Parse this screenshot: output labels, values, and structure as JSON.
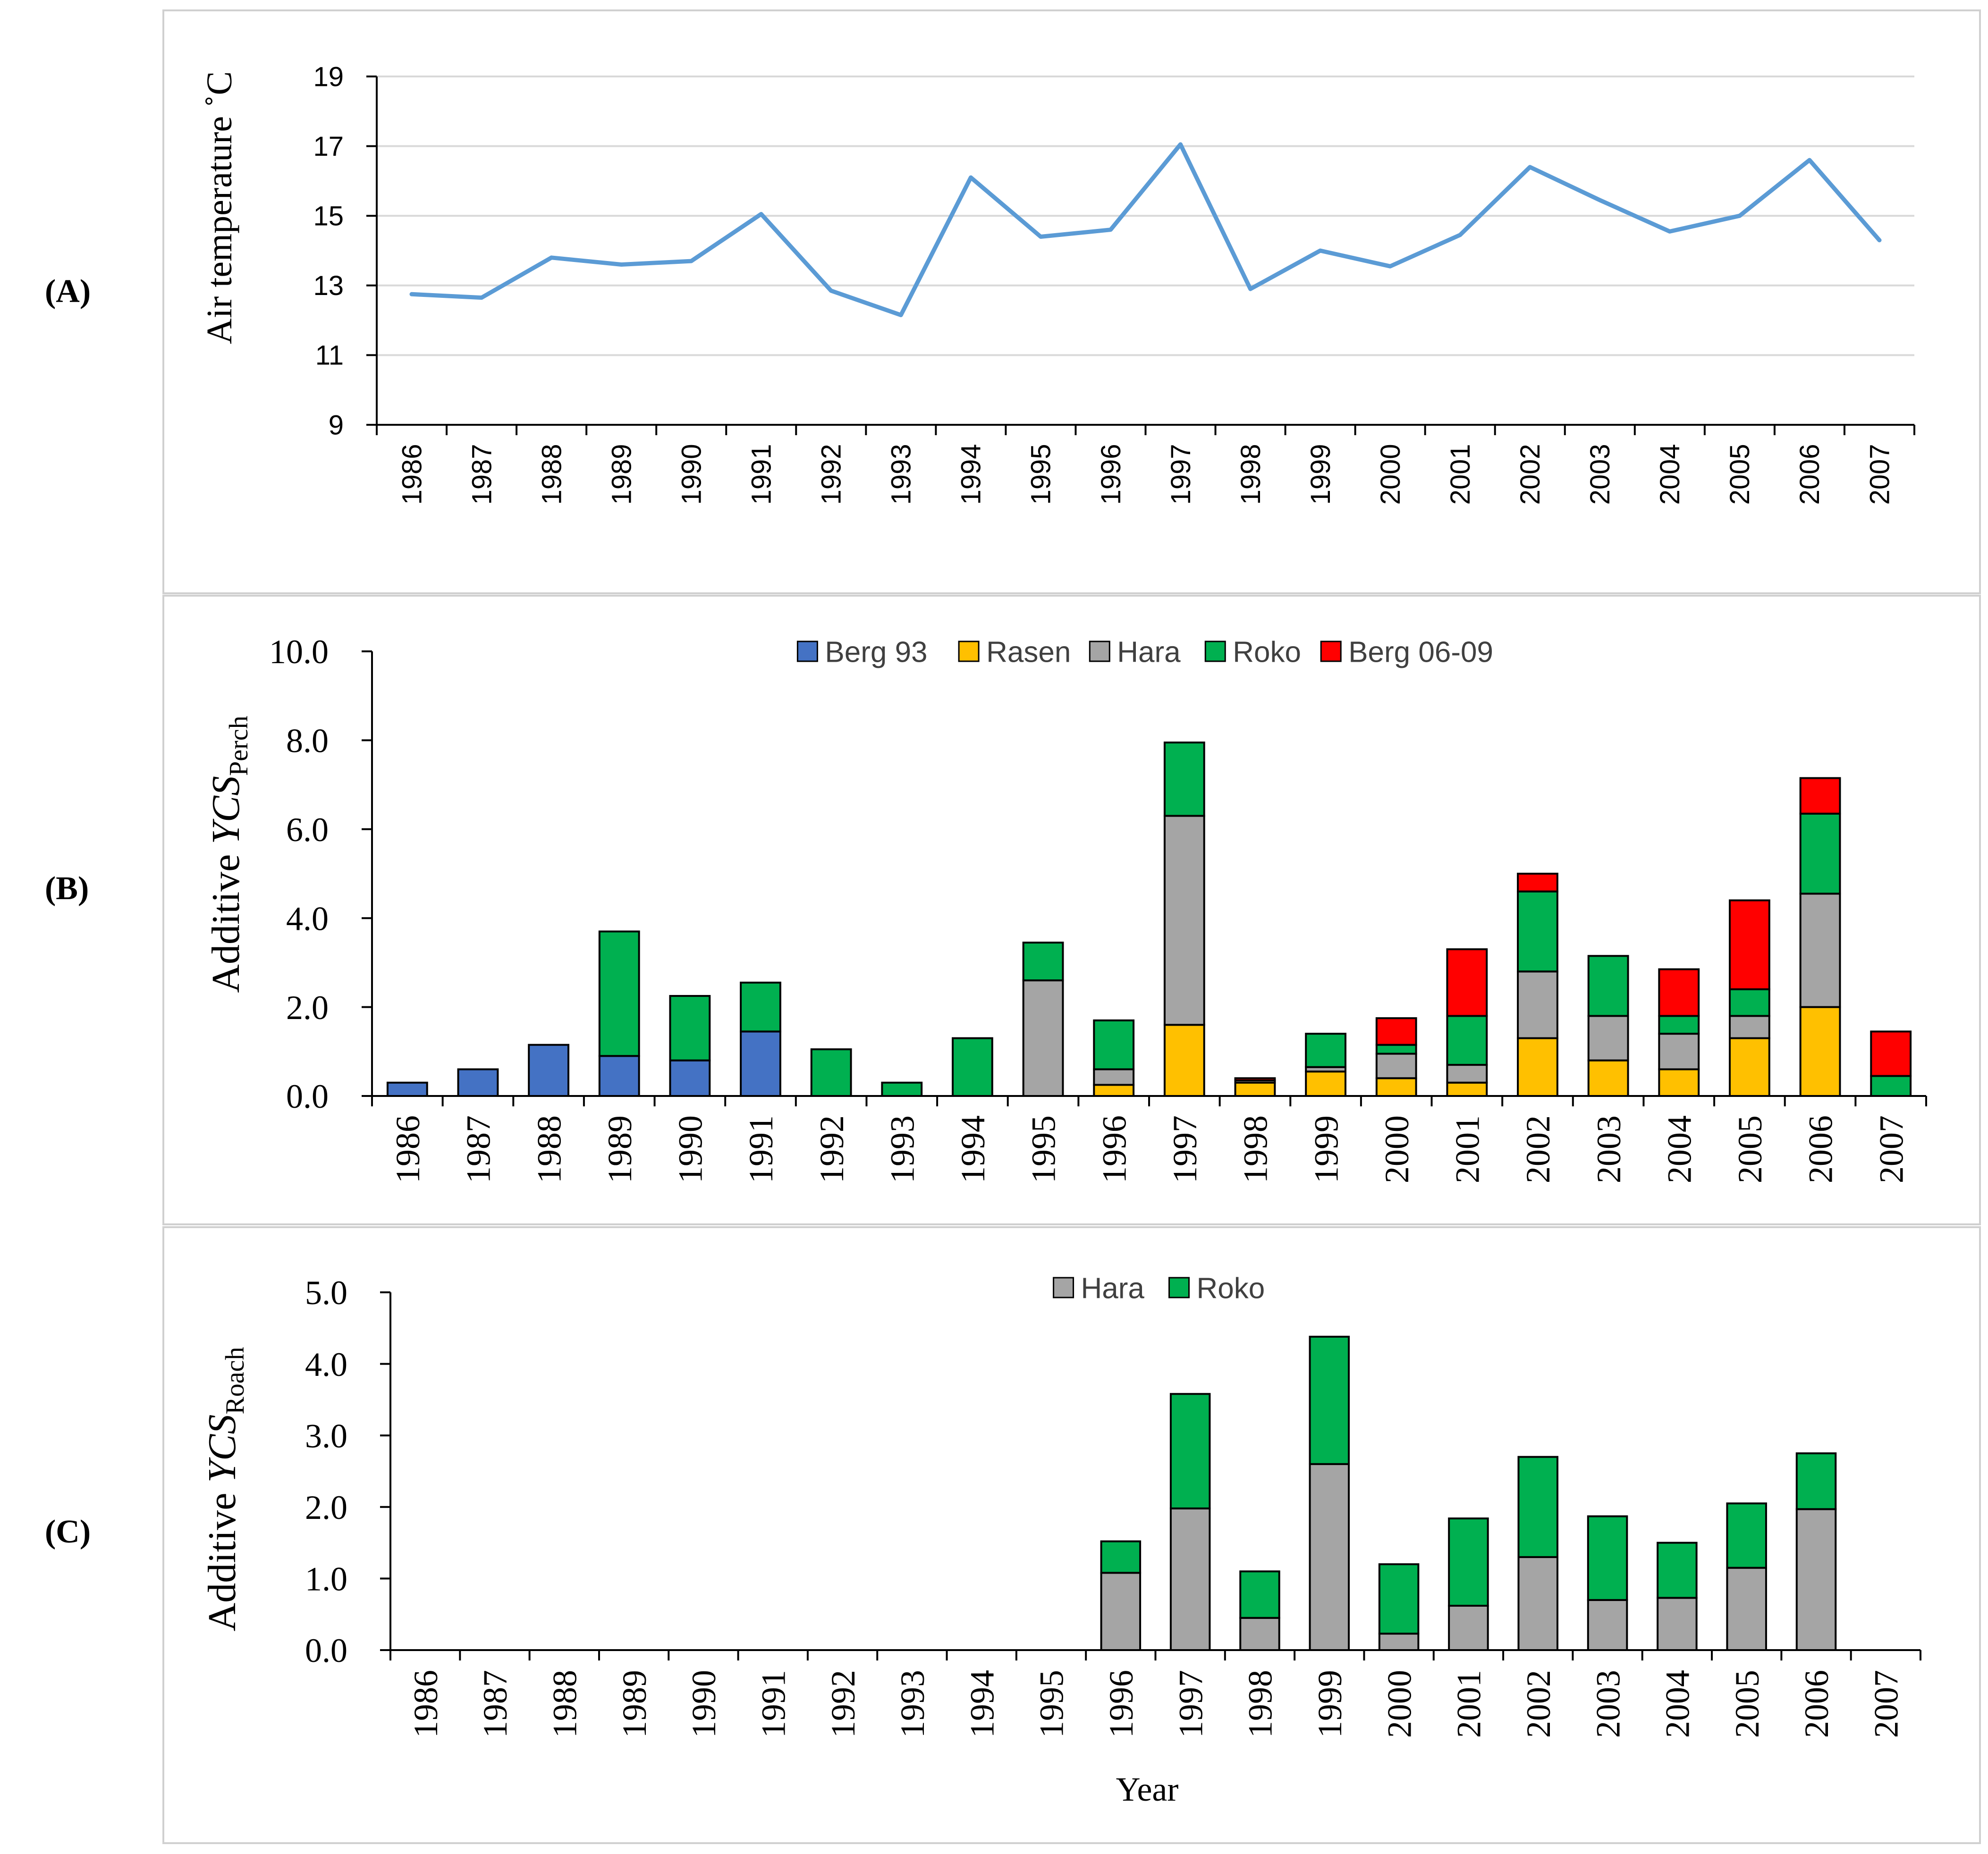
{
  "chart_data": [
    {
      "id": "A",
      "type": "line",
      "panel_label": "(A)",
      "title": "",
      "ylabel": "Air temperature ˚C",
      "xlabel": "",
      "ylim": [
        9,
        19
      ],
      "yticks": [
        9,
        11,
        13,
        15,
        17,
        19
      ],
      "ytick_labels": [
        "9",
        "11",
        "13",
        "15",
        "17",
        "19"
      ],
      "grid": true,
      "categories": [
        "1986",
        "1987",
        "1988",
        "1989",
        "1990",
        "1991",
        "1992",
        "1993",
        "1994",
        "1995",
        "1996",
        "1997",
        "1998",
        "1999",
        "2000",
        "2001",
        "2002",
        "2003",
        "2004",
        "2005",
        "2006",
        "2007"
      ],
      "series": [
        {
          "name": "Air temperature",
          "color": "#5B9BD5",
          "values": [
            12.75,
            12.65,
            13.8,
            13.6,
            13.7,
            15.05,
            12.85,
            12.15,
            16.1,
            14.4,
            14.6,
            17.05,
            12.9,
            14.0,
            13.55,
            14.45,
            16.4,
            15.45,
            14.55,
            15.0,
            16.6,
            14.3
          ]
        }
      ]
    },
    {
      "id": "B",
      "type": "bar",
      "stacked": true,
      "panel_label": "(B)",
      "title": "",
      "ylabel": "Additive YCS",
      "ylabel_main": "Additive ",
      "ylabel_italic": "YCS",
      "ylabel_sub": "Perch",
      "xlabel": "",
      "ylim": [
        0,
        10
      ],
      "yticks": [
        0,
        2,
        4,
        6,
        8,
        10
      ],
      "ytick_labels": [
        "0.0",
        "2.0",
        "4.0",
        "6.0",
        "8.0",
        "10.0"
      ],
      "grid": false,
      "legend_position": "top",
      "categories": [
        "1986",
        "1987",
        "1988",
        "1989",
        "1990",
        "1991",
        "1992",
        "1993",
        "1994",
        "1995",
        "1996",
        "1997",
        "1998",
        "1999",
        "2000",
        "2001",
        "2002",
        "2003",
        "2004",
        "2005",
        "2006",
        "2007"
      ],
      "series": [
        {
          "name": "Berg 93",
          "color": "#4472C4",
          "values": [
            0.3,
            0.6,
            1.15,
            0.9,
            0.8,
            1.45,
            0,
            0,
            0,
            0,
            0,
            0,
            0,
            0,
            0,
            0,
            0,
            0,
            0,
            0,
            0,
            0
          ]
        },
        {
          "name": "Rasen",
          "color": "#FFC000",
          "values": [
            0,
            0,
            0,
            0,
            0,
            0,
            0,
            0,
            0,
            0,
            0.25,
            1.6,
            0.3,
            0.55,
            0.4,
            0.3,
            1.3,
            0.8,
            0.6,
            1.3,
            2.0,
            0
          ]
        },
        {
          "name": "Hara",
          "color": "#A5A5A5",
          "values": [
            0,
            0,
            0,
            0,
            0,
            0,
            0,
            0,
            0,
            2.6,
            0.35,
            4.7,
            0.05,
            0.1,
            0.55,
            0.4,
            1.5,
            1.0,
            0.8,
            0.5,
            2.55,
            0
          ]
        },
        {
          "name": "Roko",
          "color": "#00B050",
          "values": [
            0,
            0,
            0,
            2.8,
            1.45,
            1.1,
            1.05,
            0.3,
            1.3,
            0.85,
            1.1,
            1.65,
            0,
            0.75,
            0.2,
            1.1,
            1.8,
            1.35,
            0.4,
            0.6,
            1.8,
            0.45
          ]
        },
        {
          "name": "Berg 06-09",
          "color": "#FF0000",
          "values": [
            0,
            0,
            0,
            0,
            0,
            0,
            0,
            0,
            0,
            0,
            0,
            0,
            0.05,
            0,
            0.6,
            1.5,
            0.4,
            0,
            1.05,
            2.0,
            0.8,
            1.0
          ]
        }
      ]
    },
    {
      "id": "C",
      "type": "bar",
      "stacked": true,
      "panel_label": "(C)",
      "title": "",
      "ylabel": "Additive YCS",
      "ylabel_main": "Additive ",
      "ylabel_italic": "YCS",
      "ylabel_sub": "Roach",
      "xlabel": "Year",
      "ylim": [
        0,
        5
      ],
      "yticks": [
        0,
        1,
        2,
        3,
        4,
        5
      ],
      "ytick_labels": [
        "0.0",
        "1.0",
        "2.0",
        "3.0",
        "4.0",
        "5.0"
      ],
      "grid": false,
      "legend_position": "top",
      "categories": [
        "1986",
        "1987",
        "1988",
        "1989",
        "1990",
        "1991",
        "1992",
        "1993",
        "1994",
        "1995",
        "1996",
        "1997",
        "1998",
        "1999",
        "2000",
        "2001",
        "2002",
        "2003",
        "2004",
        "2005",
        "2006",
        "2007"
      ],
      "series": [
        {
          "name": "Hara",
          "color": "#A5A5A5",
          "values": [
            0,
            0,
            0,
            0,
            0,
            0,
            0,
            0,
            0,
            0,
            1.08,
            1.98,
            0.45,
            2.6,
            0.23,
            0.62,
            1.3,
            0.7,
            0.73,
            1.15,
            1.97,
            0
          ]
        },
        {
          "name": "Roko",
          "color": "#00B050",
          "values": [
            0,
            0,
            0,
            0,
            0,
            0,
            0,
            0,
            0,
            0,
            0.44,
            1.6,
            0.65,
            1.78,
            0.97,
            1.22,
            1.4,
            1.17,
            0.77,
            0.9,
            0.78,
            0
          ]
        }
      ]
    }
  ]
}
